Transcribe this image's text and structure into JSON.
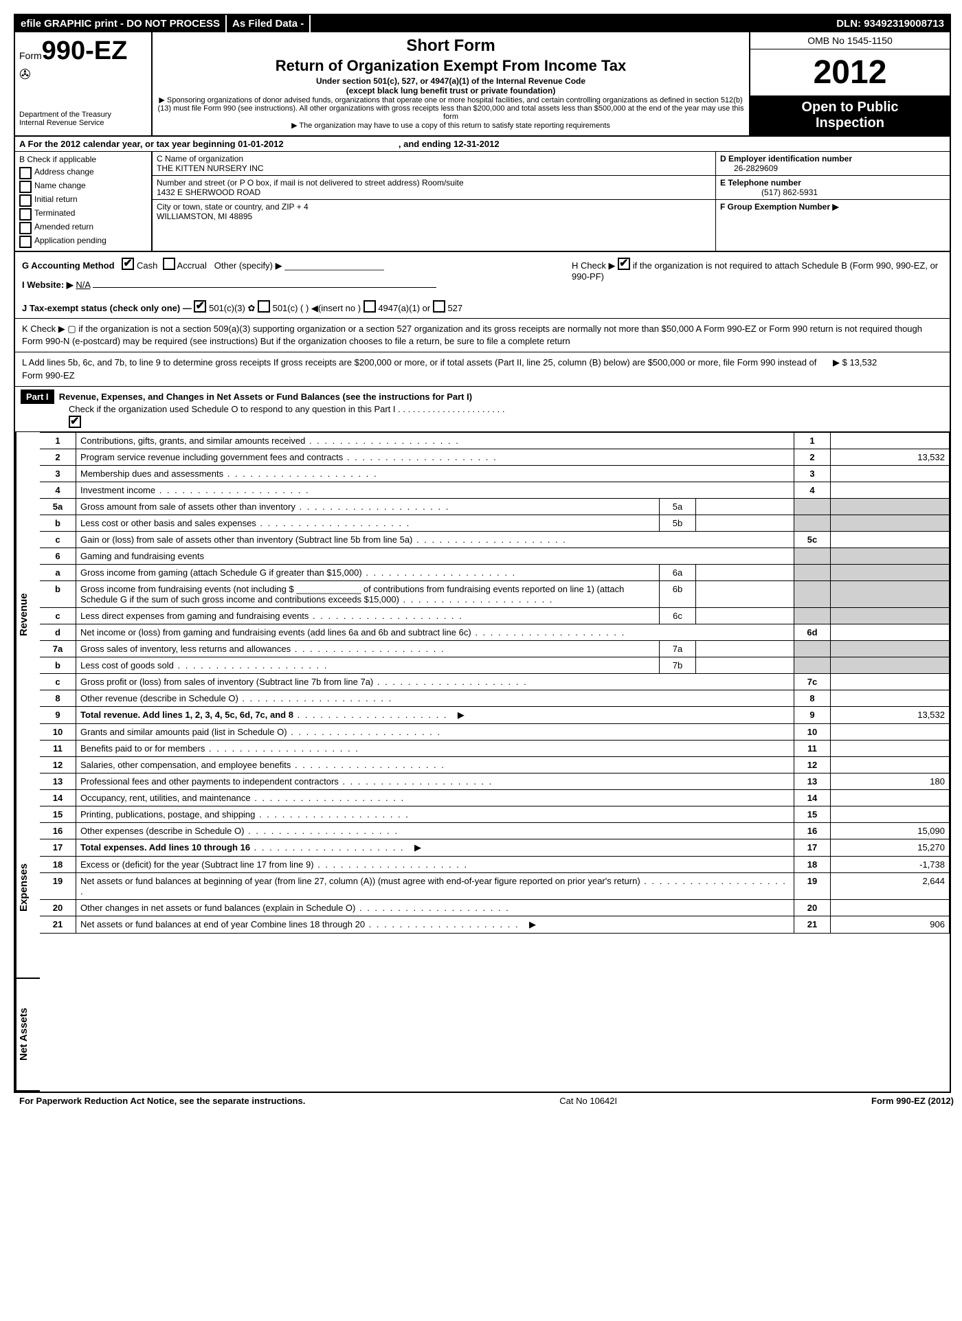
{
  "topbar": {
    "efile": "efile GRAPHIC print - DO NOT PROCESS",
    "asfiled": "As Filed Data -",
    "dln": "DLN: 93492319008713"
  },
  "header": {
    "form_prefix": "Form",
    "form_number": "990-EZ",
    "dept1": "Department of the Treasury",
    "dept2": "Internal Revenue Service",
    "short_form": "Short Form",
    "title": "Return of Organization Exempt From Income Tax",
    "subtitle1": "Under section 501(c), 527, or 4947(a)(1) of the Internal Revenue Code",
    "subtitle2": "(except black lung benefit trust or private foundation)",
    "note1": "▶ Sponsoring organizations of donor advised funds, organizations that operate one or more hospital facilities, and certain controlling organizations as defined in section 512(b)(13) must file Form 990 (see instructions). All other organizations with gross receipts less than $200,000 and total assets less than $500,000 at the end of the year may use this form",
    "note2": "▶ The organization may have to use a copy of this return to satisfy state reporting requirements",
    "omb": "OMB No 1545-1150",
    "year": "2012",
    "open_public1": "Open to Public",
    "open_public2": "Inspection"
  },
  "rowA": {
    "text_a": "A  For the 2012 calendar year, or tax year beginning 01-01-2012",
    "text_b": ", and ending 12-31-2012"
  },
  "colB": {
    "header": "B  Check if applicable",
    "items": [
      "Address change",
      "Name change",
      "Initial return",
      "Terminated",
      "Amended return",
      "Application pending"
    ]
  },
  "colC": {
    "c_label": "C Name of organization",
    "c_name": "THE KITTEN NURSERY INC",
    "addr_label": "Number and street (or P O box, if mail is not delivered to street address) Room/suite",
    "addr": "1432 E SHERWOOD ROAD",
    "city_label": "City or town, state or country, and ZIP + 4",
    "city": "WILLIAMSTON, MI  48895"
  },
  "colDEF": {
    "d_label": "D Employer identification number",
    "d_val": "26-2829609",
    "e_label": "E Telephone number",
    "e_val": "(517) 862-5931",
    "f_label": "F Group Exemption Number    ▶"
  },
  "ghi": {
    "g": "G Accounting Method",
    "g_cash": "Cash",
    "g_accrual": "Accrual",
    "g_other": "Other (specify) ▶",
    "i": "I Website: ▶",
    "i_val": "N/A",
    "j": "J Tax-exempt status (check only one) —",
    "j1": "501(c)(3)",
    "j2": "501(c) (   ) ◀(insert no )",
    "j3": "4947(a)(1) or",
    "j4": "527",
    "h1": "H  Check ▶",
    "h2": "if the organization is not required to attach Schedule B (Form 990, 990-EZ, or 990-PF)"
  },
  "k": "K Check ▶ ▢  if the organization is not a section 509(a)(3) supporting organization or a section 527 organization and its gross receipts are normally not more than $50,000  A Form 990-EZ or Form 990 return is not required though Form 990-N (e-postcard) may be required (see instructions)  But if the organization chooses to file a return, be sure to file a complete return",
  "l": "L Add lines 5b, 6c, and 7b, to line 9 to determine gross receipts  If gross receipts are $200,000 or more, or if total assets (Part II, line 25, column (B) below) are $500,000 or more, file Form 990 instead of Form 990-EZ",
  "l_amount": "▶ $ 13,532",
  "part1": {
    "label": "Part I",
    "title": "Revenue, Expenses, and Changes in Net Assets or Fund Balances (see the instructions for Part I)",
    "sub": "Check if the organization used Schedule O to respond to any question in this Part I  . . . . . . . . . . . . . . . . . . . . . ."
  },
  "side_labels": {
    "revenue": "Revenue",
    "expenses": "Expenses",
    "netassets": "Net Assets"
  },
  "lines": {
    "1": {
      "n": "1",
      "t": "Contributions, gifts, grants, and similar amounts received",
      "r": "1",
      "v": ""
    },
    "2": {
      "n": "2",
      "t": "Program service revenue including government fees and contracts",
      "r": "2",
      "v": "13,532"
    },
    "3": {
      "n": "3",
      "t": "Membership dues and assessments",
      "r": "3",
      "v": ""
    },
    "4": {
      "n": "4",
      "t": "Investment income",
      "r": "4",
      "v": ""
    },
    "5a": {
      "n": "5a",
      "t": "Gross amount from sale of assets other than inventory",
      "m": "5a"
    },
    "5b": {
      "n": "b",
      "t": "Less  cost or other basis and sales expenses",
      "m": "5b"
    },
    "5c": {
      "n": "c",
      "t": "Gain or (loss) from sale of assets other than inventory (Subtract line 5b from line 5a)",
      "r": "5c",
      "v": ""
    },
    "6": {
      "n": "6",
      "t": "Gaming and fundraising events"
    },
    "6a": {
      "n": "a",
      "t": "Gross income from gaming (attach Schedule G if greater than $15,000)",
      "m": "6a"
    },
    "6b": {
      "n": "b",
      "t": "Gross income from fundraising events (not including $ _____________ of contributions from fundraising events reported on line 1) (attach Schedule G if the sum of such gross income and contributions exceeds $15,000)",
      "m": "6b"
    },
    "6c": {
      "n": "c",
      "t": "Less  direct expenses from gaming and fundraising events",
      "m": "6c"
    },
    "6d": {
      "n": "d",
      "t": "Net income or (loss) from gaming and fundraising events (add lines 6a and 6b and subtract line 6c)",
      "r": "6d",
      "v": ""
    },
    "7a": {
      "n": "7a",
      "t": "Gross sales of inventory, less returns and allowances",
      "m": "7a"
    },
    "7b": {
      "n": "b",
      "t": "Less  cost of goods sold",
      "m": "7b"
    },
    "7c": {
      "n": "c",
      "t": "Gross profit or (loss) from sales of inventory (Subtract line 7b from line 7a)",
      "r": "7c",
      "v": ""
    },
    "8": {
      "n": "8",
      "t": "Other revenue (describe in Schedule O)",
      "r": "8",
      "v": ""
    },
    "9": {
      "n": "9",
      "t": "Total revenue. Add lines 1, 2, 3, 4, 5c, 6d, 7c, and 8",
      "r": "9",
      "v": "13,532",
      "arrow": true,
      "bold": true
    },
    "10": {
      "n": "10",
      "t": "Grants and similar amounts paid (list in Schedule O)",
      "r": "10",
      "v": ""
    },
    "11": {
      "n": "11",
      "t": "Benefits paid to or for members",
      "r": "11",
      "v": ""
    },
    "12": {
      "n": "12",
      "t": "Salaries, other compensation, and employee benefits",
      "r": "12",
      "v": ""
    },
    "13": {
      "n": "13",
      "t": "Professional fees and other payments to independent contractors",
      "r": "13",
      "v": "180"
    },
    "14": {
      "n": "14",
      "t": "Occupancy, rent, utilities, and maintenance",
      "r": "14",
      "v": ""
    },
    "15": {
      "n": "15",
      "t": "Printing, publications, postage, and shipping",
      "r": "15",
      "v": ""
    },
    "16": {
      "n": "16",
      "t": "Other expenses (describe in Schedule O)",
      "r": "16",
      "v": "15,090"
    },
    "17": {
      "n": "17",
      "t": "Total expenses. Add lines 10 through 16",
      "r": "17",
      "v": "15,270",
      "arrow": true,
      "bold": true
    },
    "18": {
      "n": "18",
      "t": "Excess or (deficit) for the year (Subtract line 17 from line 9)",
      "r": "18",
      "v": "-1,738"
    },
    "19": {
      "n": "19",
      "t": "Net assets or fund balances at beginning of year (from line 27, column (A)) (must agree with end-of-year figure reported on prior year's return)",
      "r": "19",
      "v": "2,644"
    },
    "20": {
      "n": "20",
      "t": "Other changes in net assets or fund balances (explain in Schedule O)",
      "r": "20",
      "v": ""
    },
    "21": {
      "n": "21",
      "t": "Net assets or fund balances at end of year  Combine lines 18 through 20",
      "r": "21",
      "v": "906",
      "arrow": true
    }
  },
  "footer": {
    "left": "For Paperwork Reduction Act Notice, see the separate instructions.",
    "mid": "Cat No  10642I",
    "right": "Form 990-EZ (2012)"
  }
}
